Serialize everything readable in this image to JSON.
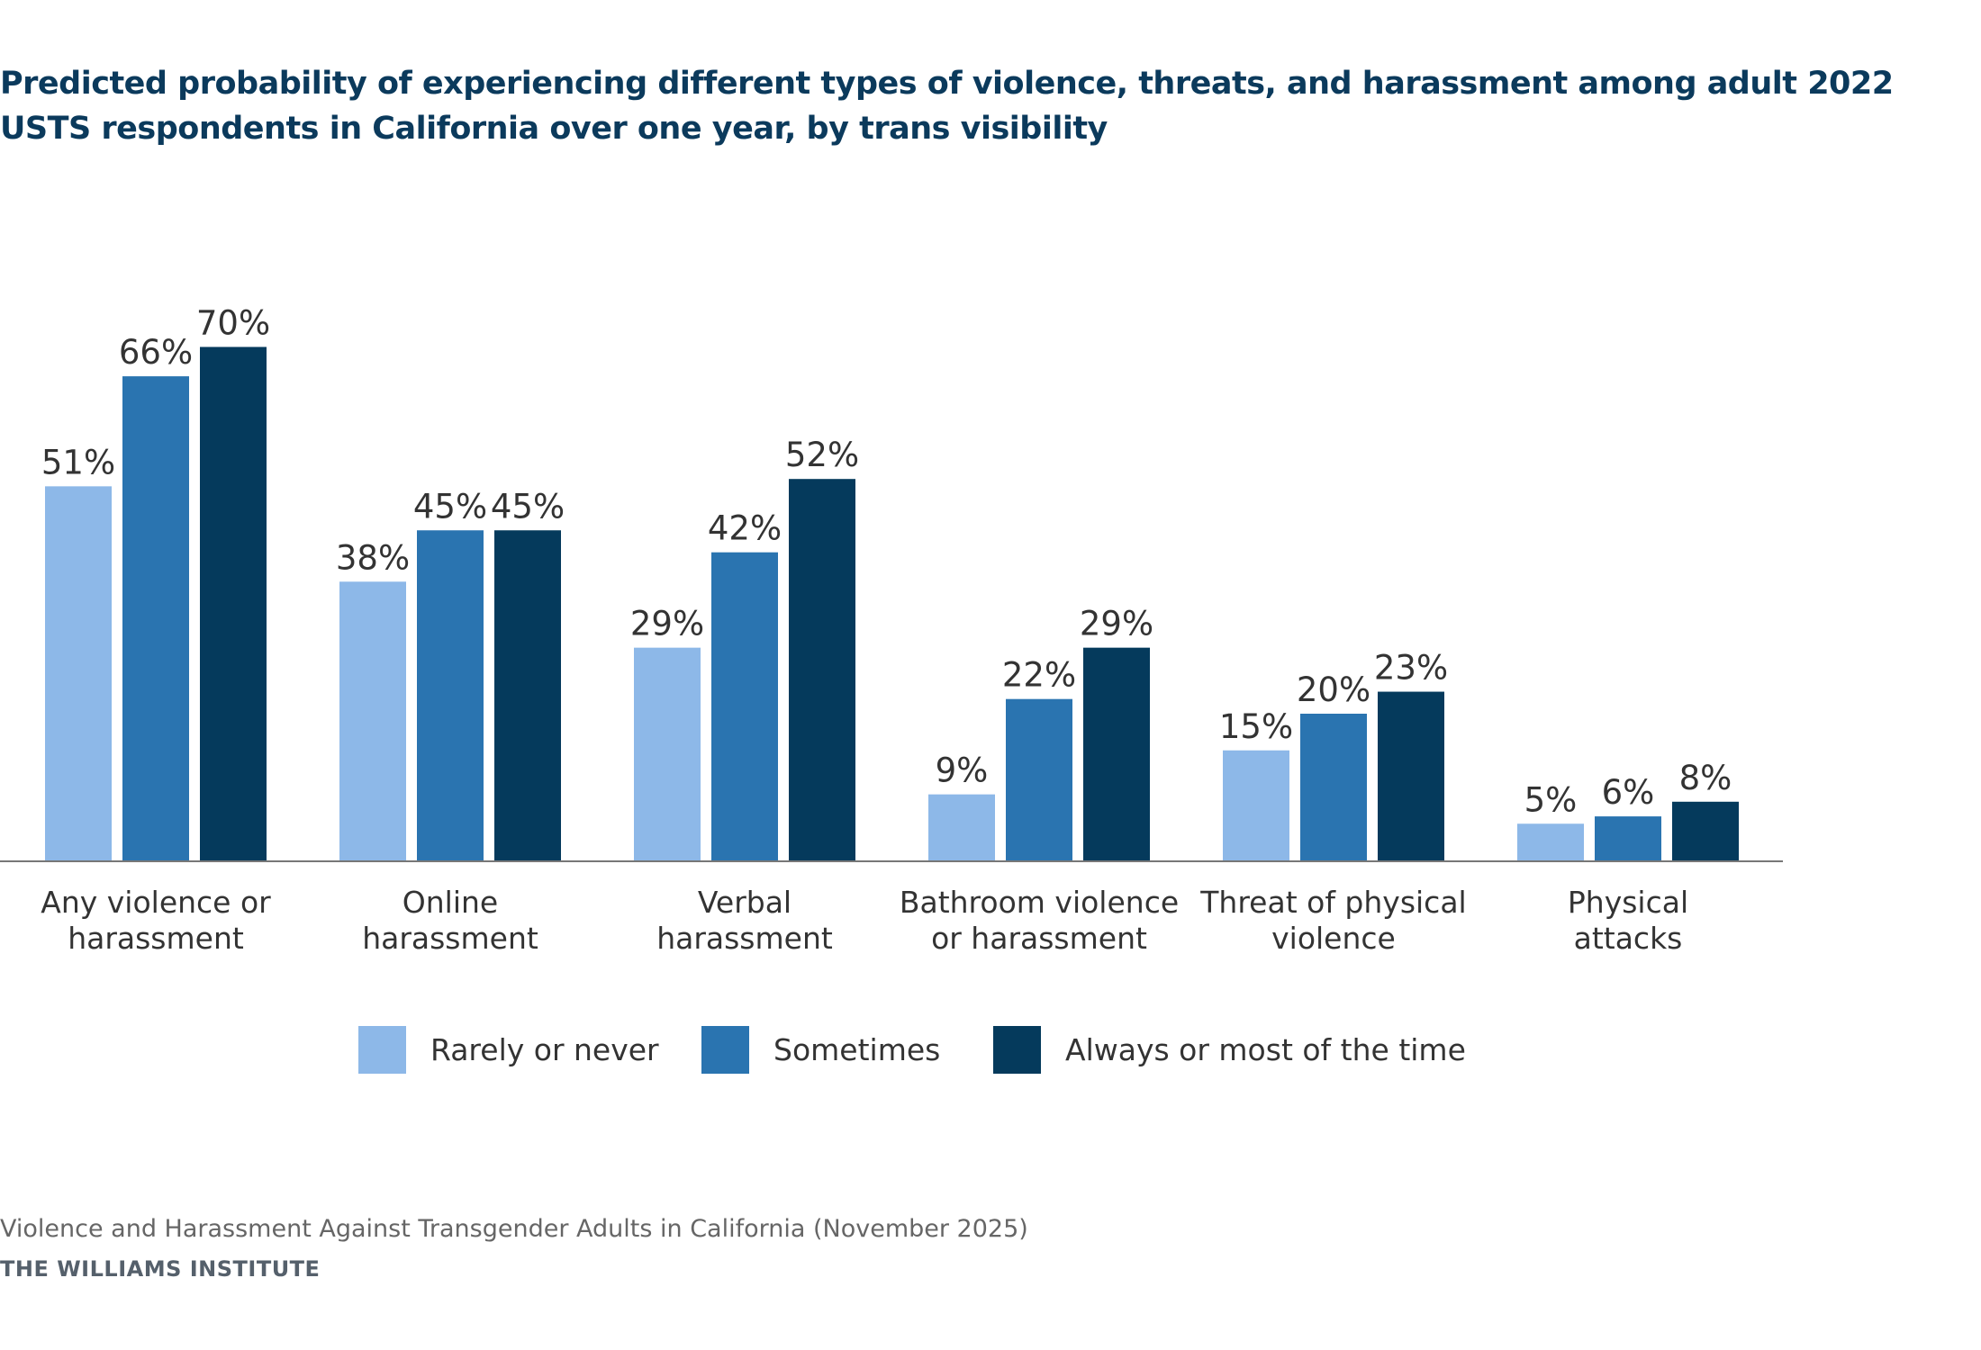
{
  "page": {
    "title": "Predicted probability of experiencing different types of violence, threats, and harassment among adult 2022 USTS respondents in California over one year, by trans visibility",
    "footer_source": "Violence and Harassment Against Transgender Adults in California (November 2025)",
    "footer_org": "THE WILLIAMS INSTITUTE"
  },
  "chart_data": {
    "type": "bar",
    "title": "Predicted probability of experiencing different types of violence, threats, and harassment among adult 2022 USTS respondents in California over one year, by trans visibility",
    "xlabel": "",
    "ylabel": "",
    "ylim": [
      0,
      100
    ],
    "grid": false,
    "legend_position": "bottom-center",
    "categories": [
      [
        "Any violence or",
        "harassment"
      ],
      [
        "Online",
        "harassment"
      ],
      [
        "Verbal",
        "harassment"
      ],
      [
        "Bathroom violence",
        "or harassment"
      ],
      [
        "Threat of physical",
        "violence"
      ],
      [
        "Physical",
        "attacks"
      ]
    ],
    "series": [
      {
        "name": "Rarely or never",
        "color": "#8db8e8",
        "values": [
          51,
          38,
          29,
          9,
          15,
          5
        ],
        "labels": [
          "51%",
          "38%",
          "29%",
          "9%",
          "15%",
          "5%"
        ]
      },
      {
        "name": "Sometimes",
        "color": "#2a74b0",
        "values": [
          66,
          45,
          42,
          22,
          20,
          6
        ],
        "labels": [
          "66%",
          "45%",
          "42%",
          "22%",
          "20%",
          "6%"
        ]
      },
      {
        "name": "Always or most of the time",
        "color": "#053a5c",
        "values": [
          70,
          45,
          52,
          29,
          23,
          8
        ],
        "labels": [
          "70%",
          "45%",
          "52%",
          "29%",
          "23%",
          "8%"
        ]
      }
    ]
  }
}
